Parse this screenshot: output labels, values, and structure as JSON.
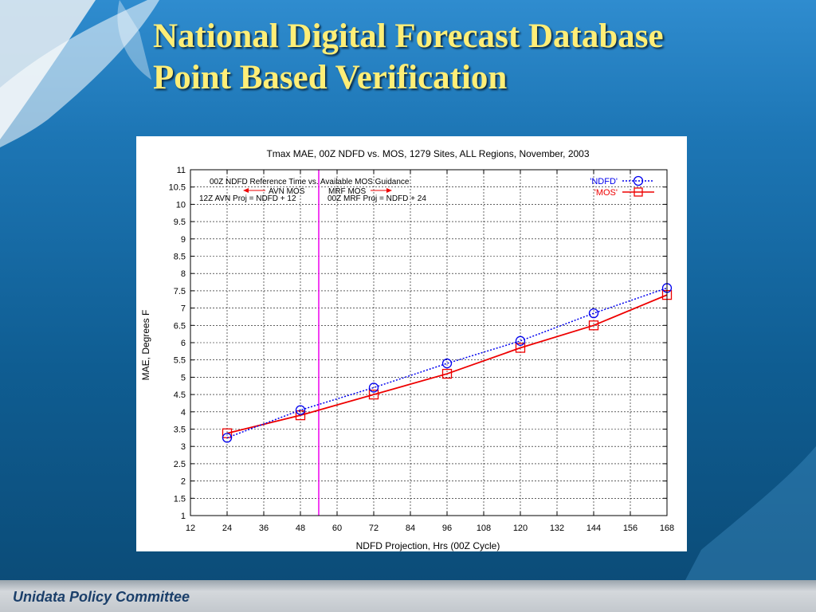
{
  "slide": {
    "title_line1": "National Digital Forecast Database",
    "title_line2": "Point Based Verification",
    "footer": "Unidata Policy Committee",
    "colors": {
      "background": "#0c4f7e",
      "title": "#ffee77",
      "footer_text": "#1b3f6a"
    }
  },
  "chart_data": {
    "type": "line",
    "title": "Tmax MAE, 00Z NDFD vs. MOS, 1279 Sites, ALL Regions, November, 2003",
    "xlabel": "NDFD Projection, Hrs (00Z Cycle)",
    "ylabel": "MAE, Degrees F",
    "xlim": [
      12,
      168
    ],
    "ylim": [
      1,
      11
    ],
    "x_ticks": [
      12,
      24,
      36,
      48,
      60,
      72,
      84,
      96,
      108,
      120,
      132,
      144,
      156,
      168
    ],
    "y_ticks": [
      "1",
      "1.5",
      "2",
      "2.5",
      "3",
      "3.5",
      "4",
      "4.5",
      "5",
      "5.5",
      "6",
      "6.5",
      "7",
      "7.5",
      "8",
      "8.5",
      "9",
      "9.5",
      "10",
      "10.5",
      "11"
    ],
    "grid": true,
    "legend_position": "top-right",
    "x": [
      24,
      48,
      72,
      96,
      120,
      144,
      168
    ],
    "series": [
      {
        "name": "'NDFD'",
        "values": [
          3.25,
          4.05,
          4.7,
          5.4,
          6.05,
          6.85,
          7.58
        ],
        "color": "#0000ee",
        "line": "dotted",
        "marker": "circle"
      },
      {
        "name": "'MOS'",
        "values": [
          3.38,
          3.9,
          4.5,
          5.1,
          5.85,
          6.5,
          7.38
        ],
        "color": "#ee0000",
        "line": "solid",
        "marker": "square"
      }
    ],
    "vertical_line": {
      "x": 54,
      "color": "#ee00ee"
    },
    "annotations": {
      "heading": "00Z NDFD Reference Time vs. Available MOS Guidance",
      "avn_label": "AVN MOS",
      "mrf_label": "MRF MOS",
      "avn_proj": "12Z AVN Proj = NDFD + 12",
      "mrf_proj": "00Z MRF Proj = NDFD + 24"
    }
  }
}
